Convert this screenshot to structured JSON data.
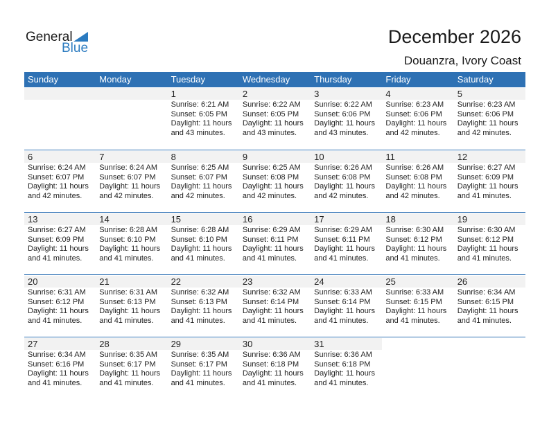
{
  "logo": {
    "text1": "General",
    "text2": "Blue"
  },
  "title": "December 2026",
  "location": "Douanzra, Ivory Coast",
  "colors": {
    "accent": "#2e71b4",
    "day_band": "#f2f2f2"
  },
  "weekdays": [
    "Sunday",
    "Monday",
    "Tuesday",
    "Wednesday",
    "Thursday",
    "Friday",
    "Saturday"
  ],
  "first_weekday_offset": 2,
  "days": [
    {
      "d": "1",
      "sr": "Sunrise: 6:21 AM",
      "ss": "Sunset: 6:05 PM",
      "dl": "Daylight: 11 hours",
      "dm": "and 43 minutes."
    },
    {
      "d": "2",
      "sr": "Sunrise: 6:22 AM",
      "ss": "Sunset: 6:05 PM",
      "dl": "Daylight: 11 hours",
      "dm": "and 43 minutes."
    },
    {
      "d": "3",
      "sr": "Sunrise: 6:22 AM",
      "ss": "Sunset: 6:06 PM",
      "dl": "Daylight: 11 hours",
      "dm": "and 43 minutes."
    },
    {
      "d": "4",
      "sr": "Sunrise: 6:23 AM",
      "ss": "Sunset: 6:06 PM",
      "dl": "Daylight: 11 hours",
      "dm": "and 42 minutes."
    },
    {
      "d": "5",
      "sr": "Sunrise: 6:23 AM",
      "ss": "Sunset: 6:06 PM",
      "dl": "Daylight: 11 hours",
      "dm": "and 42 minutes."
    },
    {
      "d": "6",
      "sr": "Sunrise: 6:24 AM",
      "ss": "Sunset: 6:07 PM",
      "dl": "Daylight: 11 hours",
      "dm": "and 42 minutes."
    },
    {
      "d": "7",
      "sr": "Sunrise: 6:24 AM",
      "ss": "Sunset: 6:07 PM",
      "dl": "Daylight: 11 hours",
      "dm": "and 42 minutes."
    },
    {
      "d": "8",
      "sr": "Sunrise: 6:25 AM",
      "ss": "Sunset: 6:07 PM",
      "dl": "Daylight: 11 hours",
      "dm": "and 42 minutes."
    },
    {
      "d": "9",
      "sr": "Sunrise: 6:25 AM",
      "ss": "Sunset: 6:08 PM",
      "dl": "Daylight: 11 hours",
      "dm": "and 42 minutes."
    },
    {
      "d": "10",
      "sr": "Sunrise: 6:26 AM",
      "ss": "Sunset: 6:08 PM",
      "dl": "Daylight: 11 hours",
      "dm": "and 42 minutes."
    },
    {
      "d": "11",
      "sr": "Sunrise: 6:26 AM",
      "ss": "Sunset: 6:08 PM",
      "dl": "Daylight: 11 hours",
      "dm": "and 42 minutes."
    },
    {
      "d": "12",
      "sr": "Sunrise: 6:27 AM",
      "ss": "Sunset: 6:09 PM",
      "dl": "Daylight: 11 hours",
      "dm": "and 41 minutes."
    },
    {
      "d": "13",
      "sr": "Sunrise: 6:27 AM",
      "ss": "Sunset: 6:09 PM",
      "dl": "Daylight: 11 hours",
      "dm": "and 41 minutes."
    },
    {
      "d": "14",
      "sr": "Sunrise: 6:28 AM",
      "ss": "Sunset: 6:10 PM",
      "dl": "Daylight: 11 hours",
      "dm": "and 41 minutes."
    },
    {
      "d": "15",
      "sr": "Sunrise: 6:28 AM",
      "ss": "Sunset: 6:10 PM",
      "dl": "Daylight: 11 hours",
      "dm": "and 41 minutes."
    },
    {
      "d": "16",
      "sr": "Sunrise: 6:29 AM",
      "ss": "Sunset: 6:11 PM",
      "dl": "Daylight: 11 hours",
      "dm": "and 41 minutes."
    },
    {
      "d": "17",
      "sr": "Sunrise: 6:29 AM",
      "ss": "Sunset: 6:11 PM",
      "dl": "Daylight: 11 hours",
      "dm": "and 41 minutes."
    },
    {
      "d": "18",
      "sr": "Sunrise: 6:30 AM",
      "ss": "Sunset: 6:12 PM",
      "dl": "Daylight: 11 hours",
      "dm": "and 41 minutes."
    },
    {
      "d": "19",
      "sr": "Sunrise: 6:30 AM",
      "ss": "Sunset: 6:12 PM",
      "dl": "Daylight: 11 hours",
      "dm": "and 41 minutes."
    },
    {
      "d": "20",
      "sr": "Sunrise: 6:31 AM",
      "ss": "Sunset: 6:12 PM",
      "dl": "Daylight: 11 hours",
      "dm": "and 41 minutes."
    },
    {
      "d": "21",
      "sr": "Sunrise: 6:31 AM",
      "ss": "Sunset: 6:13 PM",
      "dl": "Daylight: 11 hours",
      "dm": "and 41 minutes."
    },
    {
      "d": "22",
      "sr": "Sunrise: 6:32 AM",
      "ss": "Sunset: 6:13 PM",
      "dl": "Daylight: 11 hours",
      "dm": "and 41 minutes."
    },
    {
      "d": "23",
      "sr": "Sunrise: 6:32 AM",
      "ss": "Sunset: 6:14 PM",
      "dl": "Daylight: 11 hours",
      "dm": "and 41 minutes."
    },
    {
      "d": "24",
      "sr": "Sunrise: 6:33 AM",
      "ss": "Sunset: 6:14 PM",
      "dl": "Daylight: 11 hours",
      "dm": "and 41 minutes."
    },
    {
      "d": "25",
      "sr": "Sunrise: 6:33 AM",
      "ss": "Sunset: 6:15 PM",
      "dl": "Daylight: 11 hours",
      "dm": "and 41 minutes."
    },
    {
      "d": "26",
      "sr": "Sunrise: 6:34 AM",
      "ss": "Sunset: 6:15 PM",
      "dl": "Daylight: 11 hours",
      "dm": "and 41 minutes."
    },
    {
      "d": "27",
      "sr": "Sunrise: 6:34 AM",
      "ss": "Sunset: 6:16 PM",
      "dl": "Daylight: 11 hours",
      "dm": "and 41 minutes."
    },
    {
      "d": "28",
      "sr": "Sunrise: 6:35 AM",
      "ss": "Sunset: 6:17 PM",
      "dl": "Daylight: 11 hours",
      "dm": "and 41 minutes."
    },
    {
      "d": "29",
      "sr": "Sunrise: 6:35 AM",
      "ss": "Sunset: 6:17 PM",
      "dl": "Daylight: 11 hours",
      "dm": "and 41 minutes."
    },
    {
      "d": "30",
      "sr": "Sunrise: 6:36 AM",
      "ss": "Sunset: 6:18 PM",
      "dl": "Daylight: 11 hours",
      "dm": "and 41 minutes."
    },
    {
      "d": "31",
      "sr": "Sunrise: 6:36 AM",
      "ss": "Sunset: 6:18 PM",
      "dl": "Daylight: 11 hours",
      "dm": "and 41 minutes."
    }
  ]
}
